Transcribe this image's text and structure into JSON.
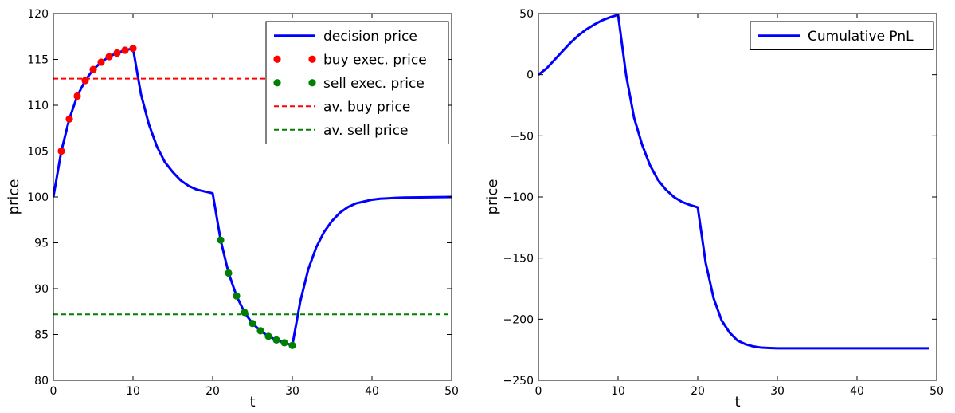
{
  "chart_data": [
    {
      "type": "line",
      "xlabel": "t",
      "ylabel": "price",
      "xlim": [
        0,
        50
      ],
      "ylim": [
        80,
        120
      ],
      "xticks": [
        "0",
        "10",
        "20",
        "30",
        "40",
        "50"
      ],
      "yticks": [
        "80",
        "85",
        "90",
        "95",
        "100",
        "105",
        "110",
        "115",
        "120"
      ],
      "grid": false,
      "legend_position": "top-right",
      "series": [
        {
          "name": "decision price",
          "style": "solid-line",
          "color": "#0000ff",
          "x": [
            0,
            1,
            2,
            3,
            4,
            5,
            6,
            7,
            8,
            9,
            10,
            11,
            12,
            13,
            14,
            15,
            16,
            17,
            18,
            19,
            20,
            21,
            22,
            23,
            24,
            25,
            26,
            27,
            28,
            29,
            30,
            31,
            32,
            33,
            34,
            35,
            36,
            37,
            38,
            39,
            40,
            41,
            42,
            43,
            44,
            45,
            46,
            47,
            48,
            49,
            50
          ],
          "y": [
            100,
            105,
            108.5,
            111,
            112.7,
            113.9,
            114.7,
            115.3,
            115.7,
            116,
            116.2,
            111.2,
            107.9,
            105.5,
            103.8,
            102.7,
            101.8,
            101.2,
            100.8,
            100.6,
            100.4,
            95.3,
            91.7,
            89.2,
            87.4,
            86.2,
            85.4,
            84.8,
            84.4,
            84.1,
            83.8,
            88.6,
            92.1,
            94.5,
            96.2,
            97.4,
            98.3,
            98.9,
            99.3,
            99.5,
            99.7,
            99.8,
            99.85,
            99.9,
            99.93,
            99.95,
            99.96,
            99.97,
            99.98,
            99.99,
            100
          ]
        },
        {
          "name": "buy exec. price",
          "style": "markers",
          "color": "#ff0000",
          "x": [
            1,
            2,
            3,
            4,
            5,
            6,
            7,
            8,
            9,
            10
          ],
          "y": [
            105,
            108.5,
            111,
            112.7,
            113.9,
            114.7,
            115.3,
            115.7,
            116,
            116.2
          ]
        },
        {
          "name": "sell exec. price",
          "style": "markers",
          "color": "#008000",
          "x": [
            21,
            22,
            23,
            24,
            25,
            26,
            27,
            28,
            29,
            30
          ],
          "y": [
            95.3,
            91.7,
            89.2,
            87.4,
            86.2,
            85.4,
            84.8,
            84.4,
            84.1,
            83.8
          ]
        },
        {
          "name": "av. buy price",
          "style": "dashed-hline",
          "color": "#ff0000",
          "y_value": 112.9
        },
        {
          "name": "av. sell price",
          "style": "dashed-hline",
          "color": "#008000",
          "y_value": 87.2
        }
      ]
    },
    {
      "type": "line",
      "xlabel": "t",
      "ylabel": "price",
      "xlim": [
        0,
        50
      ],
      "ylim": [
        -250,
        50
      ],
      "xticks": [
        "0",
        "10",
        "20",
        "30",
        "40",
        "50"
      ],
      "yticks": [
        "−250",
        "−200",
        "−150",
        "−100",
        "−50",
        "0",
        "50"
      ],
      "grid": false,
      "legend_position": "top-right",
      "series": [
        {
          "name": "Cumulative PnL",
          "style": "solid-line",
          "color": "#0000ff",
          "x": [
            0,
            1,
            2,
            3,
            4,
            5,
            6,
            7,
            8,
            9,
            10,
            11,
            12,
            13,
            14,
            15,
            16,
            17,
            18,
            19,
            20,
            21,
            22,
            23,
            24,
            25,
            26,
            27,
            28,
            29,
            30,
            31,
            32,
            33,
            34,
            35,
            36,
            37,
            38,
            39,
            40,
            41,
            42,
            43,
            44,
            45,
            46,
            47,
            48,
            49
          ],
          "y": [
            0,
            5,
            12,
            19,
            26,
            32,
            37,
            41,
            44.5,
            47,
            49,
            0,
            -35,
            -57,
            -74,
            -86,
            -94,
            -100,
            -104,
            -106.5,
            -108.5,
            -154,
            -183,
            -201,
            -211,
            -217.5,
            -220.5,
            -222.3,
            -223.3,
            -223.6,
            -223.8,
            -223.8,
            -223.8,
            -223.8,
            -223.8,
            -223.8,
            -223.8,
            -223.8,
            -223.8,
            -223.8,
            -223.8,
            -223.8,
            -223.8,
            -223.8,
            -223.8,
            -223.8,
            -223.8,
            -223.8,
            -223.8,
            -223.8
          ]
        }
      ]
    }
  ]
}
